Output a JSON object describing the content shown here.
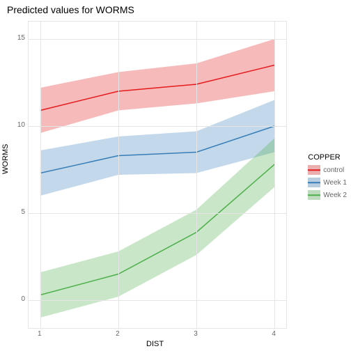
{
  "title": "Predicted values for WORMS",
  "chart": {
    "type": "line-ribbon",
    "background_color": "#ffffff",
    "grid_color": "#e5e5e5",
    "x_axis": {
      "title": "DIST",
      "ticks": [
        1,
        2,
        3,
        4
      ],
      "lim": [
        0.85,
        4.15
      ],
      "label_fontsize": 10,
      "title_fontsize": 11
    },
    "y_axis": {
      "title": "WORMS",
      "ticks": [
        0,
        5,
        10,
        15
      ],
      "lim": [
        -1.6,
        16
      ],
      "label_fontsize": 10,
      "title_fontsize": 11
    },
    "series": [
      {
        "name": "control",
        "color": "#e41a1c",
        "fill_opacity": 0.3,
        "line_width": 1.5,
        "x": [
          1,
          2,
          3,
          4
        ],
        "y": [
          10.9,
          12.0,
          12.4,
          13.5
        ],
        "y_low": [
          9.6,
          10.9,
          11.3,
          12.0
        ],
        "y_high": [
          12.2,
          13.1,
          13.6,
          15.0
        ]
      },
      {
        "name": "Week 1",
        "color": "#377eb8",
        "fill_opacity": 0.3,
        "line_width": 1.5,
        "x": [
          1,
          2,
          3,
          4
        ],
        "y": [
          7.3,
          8.3,
          8.5,
          10.0
        ],
        "y_low": [
          6.0,
          7.2,
          7.3,
          8.5
        ],
        "y_high": [
          8.6,
          9.4,
          9.7,
          11.5
        ]
      },
      {
        "name": "Week 2",
        "color": "#4daf4a",
        "fill_opacity": 0.3,
        "line_width": 1.5,
        "x": [
          1,
          2,
          3,
          4
        ],
        "y": [
          0.3,
          1.5,
          3.9,
          7.8
        ],
        "y_low": [
          -1.0,
          0.2,
          2.6,
          6.5
        ],
        "y_high": [
          1.6,
          2.8,
          5.2,
          9.3
        ]
      }
    ],
    "legend": {
      "title": "COPPER",
      "position": "right",
      "fontsize": 10,
      "title_fontsize": 11,
      "swatch_bg": "#f0f0f0"
    }
  }
}
